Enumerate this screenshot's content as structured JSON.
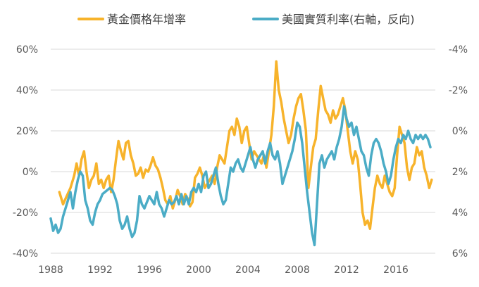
{
  "chart_data": {
    "type": "line",
    "legend_position": "top-center",
    "grid": true,
    "series": [
      {
        "name": "黃金價格年增率",
        "axis": "left",
        "color": "#F7B32B",
        "points": [
          [
            1988.7,
            -10
          ],
          [
            1989.0,
            -16
          ],
          [
            1989.3,
            -12
          ],
          [
            1989.6,
            -8
          ],
          [
            1989.9,
            -2
          ],
          [
            1990.1,
            4
          ],
          [
            1990.3,
            -2
          ],
          [
            1990.5,
            6
          ],
          [
            1990.7,
            10
          ],
          [
            1990.9,
            0
          ],
          [
            1991.1,
            -8
          ],
          [
            1991.3,
            -4
          ],
          [
            1991.5,
            -2
          ],
          [
            1991.7,
            4
          ],
          [
            1991.9,
            -6
          ],
          [
            1992.1,
            -4
          ],
          [
            1992.3,
            -8
          ],
          [
            1992.5,
            -4
          ],
          [
            1992.7,
            -2
          ],
          [
            1992.9,
            -10
          ],
          [
            1993.1,
            -4
          ],
          [
            1993.3,
            6
          ],
          [
            1993.5,
            15
          ],
          [
            1993.7,
            10
          ],
          [
            1993.9,
            6
          ],
          [
            1994.1,
            14
          ],
          [
            1994.3,
            15
          ],
          [
            1994.5,
            8
          ],
          [
            1994.7,
            4
          ],
          [
            1994.9,
            -2
          ],
          [
            1995.1,
            -1
          ],
          [
            1995.3,
            2
          ],
          [
            1995.5,
            -3
          ],
          [
            1995.7,
            1
          ],
          [
            1995.9,
            0
          ],
          [
            1996.1,
            3
          ],
          [
            1996.3,
            7
          ],
          [
            1996.5,
            3
          ],
          [
            1996.7,
            1
          ],
          [
            1996.9,
            -3
          ],
          [
            1997.1,
            -8
          ],
          [
            1997.3,
            -14
          ],
          [
            1997.5,
            -16
          ],
          [
            1997.7,
            -12
          ],
          [
            1997.9,
            -18
          ],
          [
            1998.1,
            -14
          ],
          [
            1998.3,
            -9
          ],
          [
            1998.5,
            -12
          ],
          [
            1998.7,
            -16
          ],
          [
            1998.9,
            -11
          ],
          [
            1999.1,
            -13
          ],
          [
            1999.3,
            -17
          ],
          [
            1999.5,
            -15
          ],
          [
            1999.7,
            -3
          ],
          [
            1999.9,
            -1
          ],
          [
            2000.1,
            2
          ],
          [
            2000.3,
            -2
          ],
          [
            2000.5,
            -8
          ],
          [
            2000.7,
            -6
          ],
          [
            2000.9,
            -4
          ],
          [
            2001.1,
            -2
          ],
          [
            2001.3,
            -6
          ],
          [
            2001.5,
            2
          ],
          [
            2001.7,
            8
          ],
          [
            2001.9,
            6
          ],
          [
            2002.1,
            4
          ],
          [
            2002.3,
            12
          ],
          [
            2002.5,
            20
          ],
          [
            2002.7,
            22
          ],
          [
            2002.9,
            18
          ],
          [
            2003.1,
            26
          ],
          [
            2003.3,
            22
          ],
          [
            2003.5,
            14
          ],
          [
            2003.7,
            20
          ],
          [
            2003.9,
            22
          ],
          [
            2004.1,
            14
          ],
          [
            2004.3,
            6
          ],
          [
            2004.5,
            10
          ],
          [
            2004.7,
            8
          ],
          [
            2004.9,
            6
          ],
          [
            2005.1,
            4
          ],
          [
            2005.3,
            8
          ],
          [
            2005.5,
            2
          ],
          [
            2005.7,
            10
          ],
          [
            2005.9,
            18
          ],
          [
            2006.1,
            32
          ],
          [
            2006.3,
            54
          ],
          [
            2006.5,
            40
          ],
          [
            2006.7,
            34
          ],
          [
            2006.9,
            26
          ],
          [
            2007.1,
            20
          ],
          [
            2007.3,
            14
          ],
          [
            2007.5,
            18
          ],
          [
            2007.7,
            26
          ],
          [
            2007.9,
            32
          ],
          [
            2008.1,
            36
          ],
          [
            2008.3,
            38
          ],
          [
            2008.5,
            30
          ],
          [
            2008.7,
            20
          ],
          [
            2008.9,
            -8
          ],
          [
            2009.1,
            2
          ],
          [
            2009.3,
            12
          ],
          [
            2009.5,
            16
          ],
          [
            2009.7,
            30
          ],
          [
            2009.9,
            42
          ],
          [
            2010.1,
            36
          ],
          [
            2010.3,
            30
          ],
          [
            2010.5,
            28
          ],
          [
            2010.7,
            24
          ],
          [
            2010.9,
            30
          ],
          [
            2011.1,
            26
          ],
          [
            2011.3,
            28
          ],
          [
            2011.5,
            32
          ],
          [
            2011.7,
            36
          ],
          [
            2011.9,
            30
          ],
          [
            2012.1,
            20
          ],
          [
            2012.3,
            10
          ],
          [
            2012.5,
            4
          ],
          [
            2012.7,
            10
          ],
          [
            2012.9,
            6
          ],
          [
            2013.1,
            -6
          ],
          [
            2013.3,
            -20
          ],
          [
            2013.5,
            -26
          ],
          [
            2013.7,
            -24
          ],
          [
            2013.9,
            -28
          ],
          [
            2014.1,
            -18
          ],
          [
            2014.3,
            -8
          ],
          [
            2014.5,
            -2
          ],
          [
            2014.7,
            -6
          ],
          [
            2014.9,
            -8
          ],
          [
            2015.1,
            -2
          ],
          [
            2015.3,
            -6
          ],
          [
            2015.5,
            -10
          ],
          [
            2015.7,
            -12
          ],
          [
            2015.9,
            -8
          ],
          [
            2016.1,
            8
          ],
          [
            2016.3,
            22
          ],
          [
            2016.5,
            18
          ],
          [
            2016.7,
            14
          ],
          [
            2016.9,
            2
          ],
          [
            2017.1,
            -4
          ],
          [
            2017.3,
            2
          ],
          [
            2017.5,
            4
          ],
          [
            2017.7,
            12
          ],
          [
            2017.9,
            8
          ],
          [
            2018.1,
            10
          ],
          [
            2018.3,
            2
          ],
          [
            2018.5,
            -2
          ],
          [
            2018.7,
            -8
          ],
          [
            2018.9,
            -4
          ]
        ]
      },
      {
        "name": "美國實質利率(右軸，反向)",
        "axis": "right",
        "color": "#4BACC6",
        "points": [
          [
            1988.0,
            4.3
          ],
          [
            1988.2,
            4.9
          ],
          [
            1988.4,
            4.6
          ],
          [
            1988.6,
            5.0
          ],
          [
            1988.8,
            4.8
          ],
          [
            1989.0,
            4.2
          ],
          [
            1989.2,
            3.8
          ],
          [
            1989.4,
            3.4
          ],
          [
            1989.6,
            3.0
          ],
          [
            1989.8,
            3.8
          ],
          [
            1990.0,
            3.0
          ],
          [
            1990.2,
            2.4
          ],
          [
            1990.4,
            2.0
          ],
          [
            1990.6,
            2.2
          ],
          [
            1990.8,
            3.4
          ],
          [
            1991.0,
            3.8
          ],
          [
            1991.2,
            4.4
          ],
          [
            1991.4,
            4.6
          ],
          [
            1991.6,
            4.0
          ],
          [
            1991.8,
            3.6
          ],
          [
            1992.0,
            3.4
          ],
          [
            1992.2,
            3.1
          ],
          [
            1992.4,
            3.0
          ],
          [
            1992.6,
            2.9
          ],
          [
            1992.8,
            2.8
          ],
          [
            1993.0,
            2.9
          ],
          [
            1993.2,
            3.2
          ],
          [
            1993.4,
            3.6
          ],
          [
            1993.6,
            4.4
          ],
          [
            1993.8,
            4.8
          ],
          [
            1994.0,
            4.6
          ],
          [
            1994.2,
            4.2
          ],
          [
            1994.4,
            4.8
          ],
          [
            1994.6,
            5.2
          ],
          [
            1994.8,
            5.0
          ],
          [
            1995.0,
            4.4
          ],
          [
            1995.2,
            3.2
          ],
          [
            1995.4,
            3.6
          ],
          [
            1995.6,
            3.8
          ],
          [
            1995.8,
            3.5
          ],
          [
            1996.0,
            3.2
          ],
          [
            1996.2,
            3.4
          ],
          [
            1996.4,
            3.6
          ],
          [
            1996.6,
            3.0
          ],
          [
            1996.8,
            3.6
          ],
          [
            1997.0,
            3.8
          ],
          [
            1997.2,
            4.2
          ],
          [
            1997.4,
            3.8
          ],
          [
            1997.6,
            3.4
          ],
          [
            1997.8,
            3.6
          ],
          [
            1998.0,
            3.5
          ],
          [
            1998.2,
            3.2
          ],
          [
            1998.4,
            3.6
          ],
          [
            1998.6,
            3.1
          ],
          [
            1998.8,
            3.6
          ],
          [
            1999.0,
            3.2
          ],
          [
            1999.2,
            3.6
          ],
          [
            1999.4,
            3.0
          ],
          [
            1999.6,
            2.8
          ],
          [
            1999.8,
            3.0
          ],
          [
            2000.0,
            2.6
          ],
          [
            2000.2,
            3.0
          ],
          [
            2000.4,
            2.2
          ],
          [
            2000.6,
            2.0
          ],
          [
            2000.8,
            2.8
          ],
          [
            2001.0,
            2.6
          ],
          [
            2001.2,
            2.2
          ],
          [
            2001.4,
            1.8
          ],
          [
            2001.6,
            2.6
          ],
          [
            2001.8,
            3.2
          ],
          [
            2002.0,
            3.6
          ],
          [
            2002.2,
            3.4
          ],
          [
            2002.4,
            2.6
          ],
          [
            2002.6,
            1.8
          ],
          [
            2002.8,
            2.0
          ],
          [
            2003.0,
            1.6
          ],
          [
            2003.2,
            1.4
          ],
          [
            2003.4,
            1.8
          ],
          [
            2003.6,
            2.0
          ],
          [
            2003.8,
            1.6
          ],
          [
            2004.0,
            1.2
          ],
          [
            2004.2,
            0.8
          ],
          [
            2004.4,
            1.4
          ],
          [
            2004.6,
            1.8
          ],
          [
            2004.8,
            1.4
          ],
          [
            2005.0,
            1.2
          ],
          [
            2005.2,
            1.0
          ],
          [
            2005.4,
            1.6
          ],
          [
            2005.6,
            1.0
          ],
          [
            2005.8,
            0.6
          ],
          [
            2006.0,
            1.2
          ],
          [
            2006.2,
            1.4
          ],
          [
            2006.4,
            1.0
          ],
          [
            2006.6,
            1.6
          ],
          [
            2006.8,
            2.6
          ],
          [
            2007.0,
            2.2
          ],
          [
            2007.2,
            1.8
          ],
          [
            2007.4,
            1.4
          ],
          [
            2007.6,
            1.0
          ],
          [
            2007.8,
            0.4
          ],
          [
            2008.0,
            -0.4
          ],
          [
            2008.2,
            -0.2
          ],
          [
            2008.4,
            0.6
          ],
          [
            2008.6,
            1.8
          ],
          [
            2008.8,
            3.0
          ],
          [
            2009.0,
            4.0
          ],
          [
            2009.2,
            5.0
          ],
          [
            2009.4,
            5.6
          ],
          [
            2009.6,
            3.6
          ],
          [
            2009.8,
            1.6
          ],
          [
            2010.0,
            1.2
          ],
          [
            2010.2,
            1.8
          ],
          [
            2010.4,
            1.4
          ],
          [
            2010.6,
            1.2
          ],
          [
            2010.8,
            1.0
          ],
          [
            2011.0,
            1.4
          ],
          [
            2011.2,
            0.8
          ],
          [
            2011.4,
            0.4
          ],
          [
            2011.6,
            -0.2
          ],
          [
            2011.8,
            -1.2
          ],
          [
            2012.0,
            -0.6
          ],
          [
            2012.2,
            -0.2
          ],
          [
            2012.4,
            -0.4
          ],
          [
            2012.6,
            0.2
          ],
          [
            2012.8,
            -0.2
          ],
          [
            2013.0,
            0.4
          ],
          [
            2013.2,
            1.0
          ],
          [
            2013.4,
            1.2
          ],
          [
            2013.6,
            1.8
          ],
          [
            2013.8,
            2.2
          ],
          [
            2014.0,
            1.2
          ],
          [
            2014.2,
            0.6
          ],
          [
            2014.4,
            0.4
          ],
          [
            2014.6,
            0.6
          ],
          [
            2014.8,
            1.0
          ],
          [
            2015.0,
            1.6
          ],
          [
            2015.2,
            2.0
          ],
          [
            2015.4,
            2.6
          ],
          [
            2015.6,
            2.2
          ],
          [
            2015.8,
            1.4
          ],
          [
            2016.0,
            0.8
          ],
          [
            2016.2,
            0.4
          ],
          [
            2016.4,
            0.6
          ],
          [
            2016.6,
            0.2
          ],
          [
            2016.8,
            0.4
          ],
          [
            2017.0,
            0.0
          ],
          [
            2017.2,
            0.4
          ],
          [
            2017.4,
            0.6
          ],
          [
            2017.6,
            0.2
          ],
          [
            2017.8,
            0.4
          ],
          [
            2018.0,
            0.2
          ],
          [
            2018.2,
            0.4
          ],
          [
            2018.4,
            0.2
          ],
          [
            2018.6,
            0.4
          ],
          [
            2018.8,
            0.8
          ]
        ]
      }
    ],
    "x_axis": {
      "min": 1988,
      "max": 2019.2,
      "ticks": [
        1988,
        1992,
        1996,
        2000,
        2004,
        2008,
        2012,
        2016
      ],
      "tick_labels": [
        "1988",
        "1992",
        "1996",
        "2000",
        "2004",
        "2008",
        "2012",
        "2016"
      ]
    },
    "y_left": {
      "min": -40,
      "max": 60,
      "ticks": [
        -40,
        -20,
        0,
        20,
        40,
        60
      ],
      "tick_labels": [
        "-40%",
        "-20%",
        "0%",
        "20%",
        "40%",
        "60%"
      ]
    },
    "y_right": {
      "inverted": true,
      "min": -4,
      "max": 6,
      "ticks": [
        -4,
        -2,
        0,
        2,
        4,
        6
      ],
      "tick_labels": [
        "-4%",
        "-2%",
        "0%",
        "2%",
        "4%",
        "6%"
      ]
    },
    "gridline_color": "#D9D9D9"
  }
}
